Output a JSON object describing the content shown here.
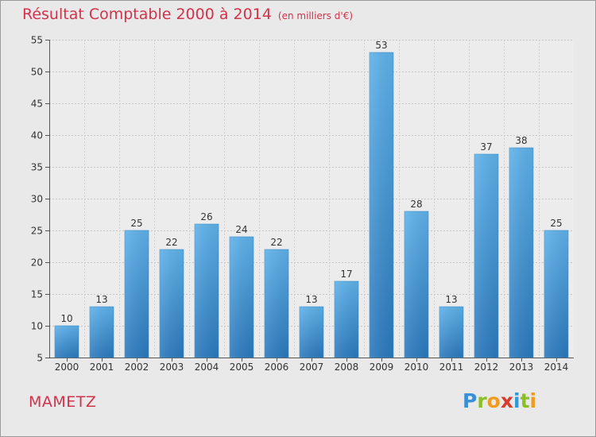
{
  "chart_data": {
    "type": "bar",
    "title": "Résultat Comptable 2000 à 2014",
    "unit": "(en milliers d'€)",
    "categories": [
      "2000",
      "2001",
      "2002",
      "2003",
      "2004",
      "2005",
      "2006",
      "2007",
      "2008",
      "2009",
      "2010",
      "2011",
      "2012",
      "2013",
      "2014"
    ],
    "values": [
      10,
      13,
      25,
      22,
      26,
      24,
      22,
      13,
      17,
      53,
      28,
      13,
      37,
      38,
      25
    ],
    "ylim": [
      5,
      55
    ],
    "yticks": [
      5,
      10,
      15,
      20,
      25,
      30,
      35,
      40,
      45,
      50,
      55
    ],
    "grid": true,
    "bar_color": "#4a9de0"
  },
  "place_name": "MAMETZ",
  "logo_letters": [
    "P",
    "r",
    "o",
    "x",
    "i",
    "t",
    "i"
  ]
}
